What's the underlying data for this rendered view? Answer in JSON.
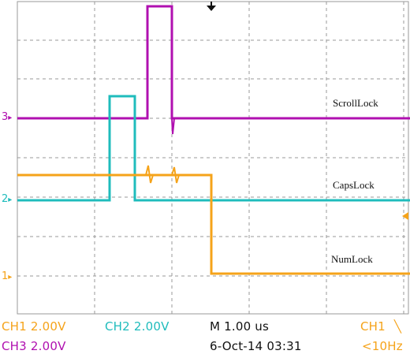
{
  "channels": [
    {
      "id": "ch1",
      "marker": "1",
      "color": "#f5a31a"
    },
    {
      "id": "ch2",
      "marker": "2",
      "color": "#1fbcbc"
    },
    {
      "id": "ch3",
      "marker": "3",
      "color": "#b010b0"
    }
  ],
  "trace_labels": {
    "scrolllock": "ScrollLock",
    "capslock": "CapsLock",
    "numlock": "NumLock"
  },
  "status": {
    "ch1_scale": "CH1  2.00V",
    "ch2_scale": "CH2  2.00V",
    "ch3_scale": "CH3  2.00V",
    "timebase": "M 1.00 us",
    "datetime": "6-Oct-14 03:31",
    "trigger_source": "CH1",
    "trigger_slope_icon": "falling-edge-icon",
    "trigger_freq": "<10Hz"
  },
  "colors": {
    "grid": "#9a9a9a",
    "ch1": "#f5a31a",
    "ch2": "#1fbcbc",
    "ch3": "#b010b0"
  }
}
